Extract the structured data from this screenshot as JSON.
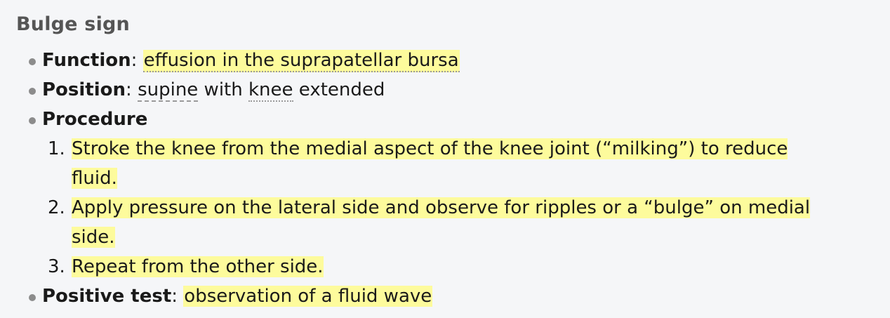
{
  "title": "Bulge sign",
  "function": {
    "label": "Function",
    "sep": ":",
    "value": "effusion in the suprapatellar bursa"
  },
  "position": {
    "label": "Position",
    "sep": ":",
    "value_part1": "supine",
    "value_part2": " with ",
    "value_part3": "knee",
    "value_part4": " extended"
  },
  "procedure": {
    "label": "Procedure",
    "steps": [
      {
        "num": "1.",
        "line1": "Stroke the knee from the medial aspect of the knee joint (“milking”) to reduce",
        "line2": "fluid."
      },
      {
        "num": "2.",
        "line1": "Apply pressure on the lateral side and observe for ripples or a “bulge” on medial",
        "line2": "side."
      },
      {
        "num": "3.",
        "line1": "Repeat from the other side."
      }
    ]
  },
  "positive_test": {
    "label": "Positive test",
    "sep": ":",
    "value": "observation of a fluid wave"
  },
  "colors": {
    "highlight": "#fdfb9c",
    "title": "#555555",
    "bullet": "#8c8c8c",
    "background": "#f5f6f8"
  }
}
